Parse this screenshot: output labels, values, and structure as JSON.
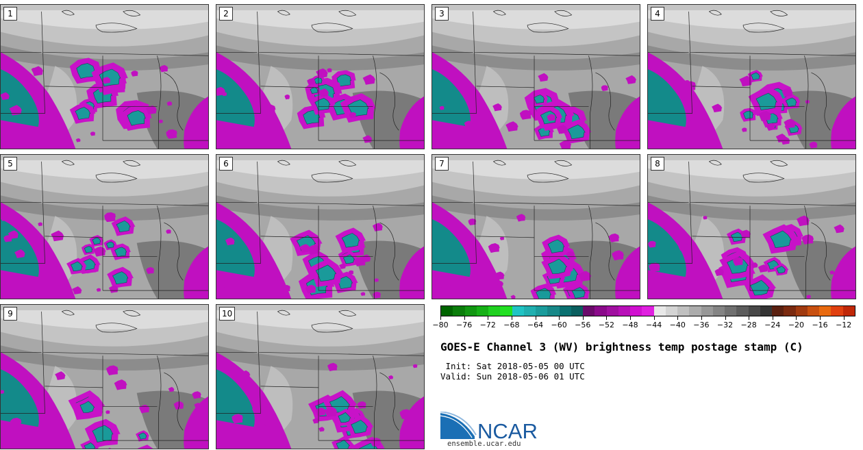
{
  "panels": [
    {
      "label": "1"
    },
    {
      "label": "2"
    },
    {
      "label": "3"
    },
    {
      "label": "4"
    },
    {
      "label": "5"
    },
    {
      "label": "6"
    },
    {
      "label": "7"
    },
    {
      "label": "8"
    },
    {
      "label": "9"
    },
    {
      "label": "10"
    }
  ],
  "colorbar": {
    "colors": [
      "#006400",
      "#0a7d0a",
      "#119611",
      "#16b016",
      "#1fd01f",
      "#22e022",
      "#20c4c4",
      "#20b0b0",
      "#1a9c9c",
      "#178888",
      "#0a7070",
      "#0a5e5e",
      "#6a0a6a",
      "#8a0a8a",
      "#a010a0",
      "#b810b8",
      "#d010d0",
      "#e020e0",
      "#e8e8e8",
      "#d4d4d4",
      "#c0c0c0",
      "#acacac",
      "#989898",
      "#848484",
      "#707070",
      "#5c5c5c",
      "#484848",
      "#343434",
      "#5a2010",
      "#7a2a10",
      "#a03a10",
      "#c85010",
      "#e86a10",
      "#e04010",
      "#c02808"
    ],
    "tick_labels": [
      "−80",
      "−76",
      "−72",
      "−68",
      "−64",
      "−60",
      "−56",
      "−52",
      "−48",
      "−44",
      "−40",
      "−36",
      "−32",
      "−28",
      "−24",
      "−20",
      "−16",
      "−12"
    ]
  },
  "title": "GOES-E Channel 3 (WV) brightness temp postage stamp (C)",
  "init_line": " Init: Sat 2018-05-05 00 UTC",
  "valid_line": "Valid: Sun 2018-05-06 01 UTC",
  "logo": {
    "text": "NCAR",
    "url": "ensemble.ucar.edu"
  }
}
